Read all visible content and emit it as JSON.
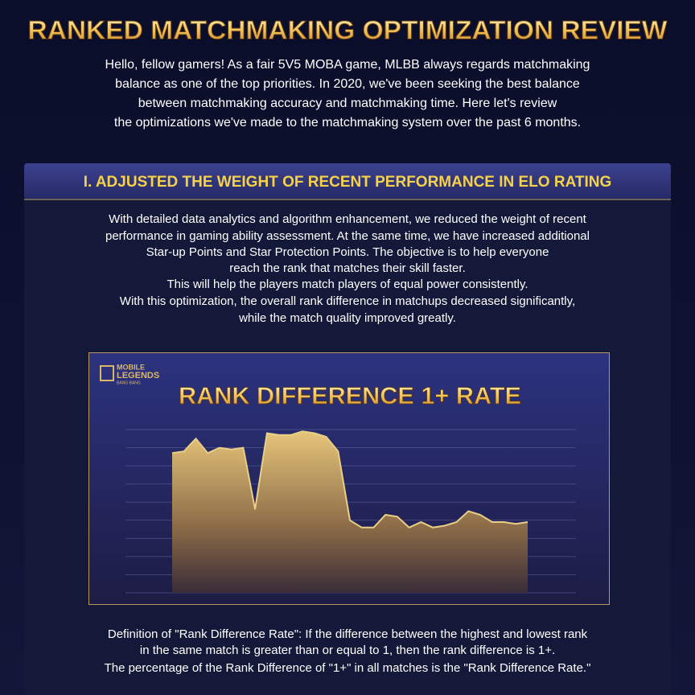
{
  "header": {
    "title": "RANKED MATCHMAKING OPTIMIZATION REVIEW",
    "intro": [
      "Hello, fellow gamers! As a fair 5V5 MOBA game, MLBB always regards matchmaking",
      "balance as one of the top priorities. In 2020, we've been seeking the best balance",
      "between matchmaking accuracy and matchmaking time. Here let's review",
      "the optimizations we've made to the matchmaking system over the past 6 months."
    ]
  },
  "section": {
    "heading": "I. ADJUSTED THE WEIGHT OF RECENT PERFORMANCE IN ELO RATING",
    "body": [
      "With detailed data analytics and algorithm enhancement, we reduced the weight of recent",
      "performance in gaming ability assessment. At the same time, we have increased additional",
      "Star-up Points and Star Protection Points. The objective is to help everyone",
      "reach the rank that matches their skill faster.",
      "This will help the players match players of equal power consistently.",
      "With this optimization, the overall rank difference in matchups decreased significantly,",
      "while the match quality improved greatly."
    ],
    "logo": [
      "MOBILE",
      "LEGENDS",
      "BANG BANG"
    ],
    "definition": [
      "Definition of \"Rank Difference Rate\": If the difference between the highest and lowest rank",
      "in the same match is greater than or equal to 1, then the rank difference is 1+.",
      "The percentage of the Rank Difference of \"1+\" in all matches is the \"Rank Difference Rate.\""
    ]
  },
  "chart_data": {
    "type": "area",
    "title": "RANK DIFFERENCE 1+ RATE",
    "values": [
      7.7,
      7.8,
      8.5,
      7.7,
      8.0,
      7.9,
      8.0,
      4.6,
      8.8,
      8.7,
      8.7,
      8.9,
      8.8,
      8.6,
      7.8,
      4.0,
      3.6,
      3.6,
      4.3,
      4.2,
      3.6,
      3.9,
      3.6,
      3.7,
      3.9,
      4.5,
      4.3,
      3.9,
      3.9,
      3.8,
      3.9
    ],
    "color": "#e9cf86",
    "ylim": [
      0,
      9
    ],
    "yticks": [
      0,
      1,
      2,
      3,
      4,
      5,
      6,
      7,
      8,
      9
    ],
    "grid": true
  }
}
